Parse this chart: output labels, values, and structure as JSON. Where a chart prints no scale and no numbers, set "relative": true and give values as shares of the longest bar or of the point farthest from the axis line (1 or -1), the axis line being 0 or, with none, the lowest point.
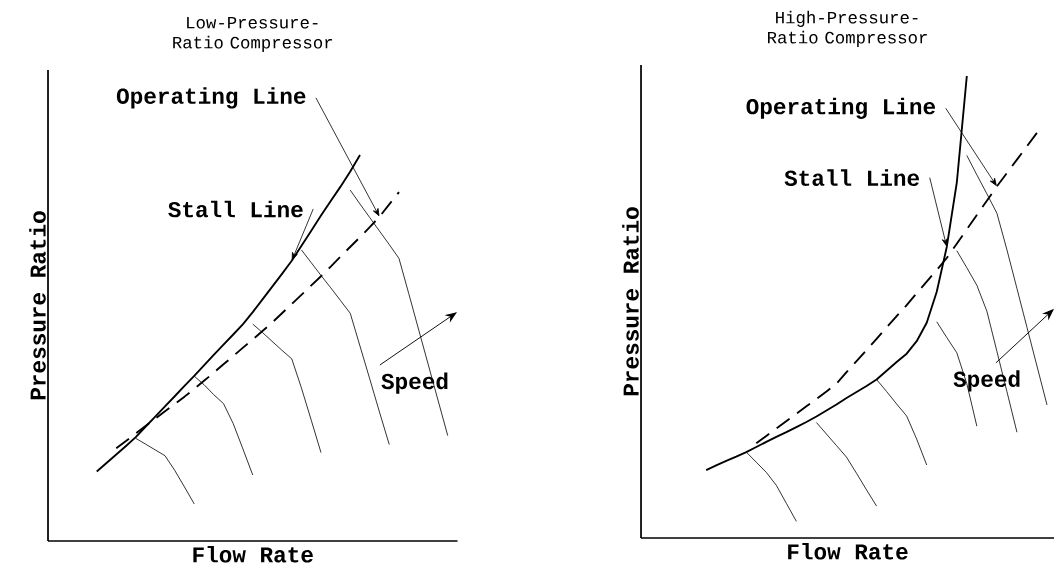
{
  "chart_data": [
    {
      "type": "line",
      "title": "Low-Pressure-Ratio Compressor",
      "xlabel": "Flow Rate",
      "ylabel": "Pressure Ratio",
      "relative": true,
      "annotations": [
        "Speed"
      ],
      "categories": [
        null,
        null,
        null,
        null,
        null,
        null,
        null,
        null,
        null,
        null,
        null,
        null,
        null,
        null,
        null,
        null,
        null,
        null,
        null,
        null,
        null,
        null,
        null,
        null,
        null,
        null,
        null,
        null,
        null,
        null,
        null,
        null,
        null,
        null,
        null,
        null,
        null,
        null,
        null,
        null,
        null,
        null,
        null
      ],
      "series": [
        {
          "name": "Stall Line",
          "color": "#000000",
          "line_style": "solid",
          "values": [
            null,
            null,
            null,
            null,
            null,
            0.18,
            0.202,
            0.224,
            0.246,
            0.269,
            0.296,
            0.322,
            0.349,
            0.375,
            0.402,
            0.428,
            0.455,
            0.482,
            0.509,
            0.535,
            0.562,
            0.593,
            0.626,
            0.659,
            0.692,
            0.726,
            0.765,
            0.804,
            0.843,
            0.881,
            0.918,
            0.957,
            1.0,
            null,
            null,
            null,
            null,
            null,
            null,
            null,
            null,
            null,
            null
          ]
        },
        {
          "name": "Operating Line",
          "color": "#000000",
          "line_style": "dashed",
          "values": [
            null,
            null,
            null,
            null,
            null,
            null,
            null,
            0.24,
            0.259,
            0.279,
            0.298,
            0.317,
            0.336,
            0.355,
            0.374,
            0.394,
            0.415,
            0.436,
            0.458,
            0.479,
            0.501,
            0.522,
            0.544,
            0.566,
            0.59,
            0.614,
            0.638,
            0.662,
            0.686,
            0.711,
            0.737,
            0.762,
            0.787,
            0.813,
            0.84,
            0.872,
            0.904,
            null,
            null,
            null,
            null,
            null,
            null
          ]
        },
        {
          "color": "#000000",
          "line_style": "solid",
          "values": [
            null,
            null,
            null,
            null,
            null,
            null,
            null,
            null,
            null,
            0.266,
            0.251,
            0.236,
            0.221,
            0.183,
            0.14,
            0.096,
            null,
            null,
            null,
            null,
            null,
            null,
            null,
            null,
            null,
            null,
            null,
            null,
            null,
            null,
            null,
            null,
            null,
            null,
            null,
            null,
            null,
            null,
            null,
            null,
            null,
            null,
            null
          ]
        },
        {
          "color": "#000000",
          "line_style": "solid",
          "values": [
            null,
            null,
            null,
            null,
            null,
            null,
            null,
            null,
            null,
            null,
            null,
            null,
            null,
            null,
            null,
            0.427,
            0.405,
            0.379,
            0.356,
            0.304,
            0.238,
            0.171,
            null,
            null,
            null,
            null,
            null,
            null,
            null,
            null,
            null,
            null,
            null,
            null,
            null,
            null,
            null,
            null,
            null,
            null,
            null,
            null,
            null
          ]
        },
        {
          "color": "#000000",
          "line_style": "solid",
          "values": [
            null,
            null,
            null,
            null,
            null,
            null,
            null,
            null,
            null,
            null,
            null,
            null,
            null,
            null,
            null,
            null,
            null,
            null,
            null,
            null,
            null,
            0.562,
            0.54,
            0.517,
            0.494,
            0.472,
            0.396,
            0.313,
            0.229,
            null,
            null,
            null,
            null,
            null,
            null,
            null,
            null,
            null,
            null,
            null,
            null,
            null,
            null
          ]
        },
        {
          "color": "#000000",
          "line_style": "solid",
          "values": [
            null,
            null,
            null,
            null,
            null,
            null,
            null,
            null,
            null,
            null,
            null,
            null,
            null,
            null,
            null,
            null,
            null,
            null,
            null,
            null,
            null,
            null,
            null,
            null,
            null,
            null,
            0.754,
            0.721,
            0.688,
            0.656,
            0.623,
            0.59,
            0.505,
            0.42,
            0.334,
            0.25,
            null,
            null,
            null,
            null,
            null,
            null,
            null
          ]
        },
        {
          "color": "#000000",
          "line_style": "solid",
          "values": [
            null,
            null,
            null,
            null,
            null,
            null,
            null,
            null,
            null,
            null,
            null,
            null,
            null,
            null,
            null,
            null,
            null,
            null,
            null,
            null,
            null,
            null,
            null,
            null,
            null,
            null,
            null,
            null,
            null,
            null,
            null,
            0.909,
            0.873,
            0.838,
            0.803,
            0.768,
            0.732,
            0.641,
            0.549,
            0.457,
            0.365,
            0.273,
            null
          ]
        }
      ]
    },
    {
      "type": "line",
      "title": "High-Pressure-Ratio Compressor",
      "xlabel": "Flow Rate",
      "ylabel": "Pressure Ratio",
      "relative": true,
      "annotations": [
        "Speed"
      ],
      "categories": [
        null,
        null,
        null,
        null,
        null,
        null,
        null,
        null,
        null,
        null,
        null,
        null,
        null,
        null,
        null,
        null,
        null,
        null,
        null,
        null,
        null,
        null,
        null,
        null,
        null,
        null,
        null,
        null,
        null,
        null,
        null,
        null,
        null,
        null,
        null,
        null,
        null,
        null,
        null,
        null,
        null
      ],
      "series": [
        {
          "name": "Stall Line",
          "color": "#000000",
          "line_style": "solid",
          "values": [
            null,
            null,
            null,
            null,
            null,
            null,
            0.147,
            0.157,
            0.167,
            0.176,
            0.186,
            0.197,
            0.208,
            0.219,
            0.229,
            0.24,
            0.251,
            0.263,
            0.276,
            0.289,
            0.303,
            0.316,
            0.329,
            0.343,
            0.362,
            0.381,
            0.399,
            0.426,
            0.466,
            0.533,
            0.63,
            0.769,
            1.0,
            null,
            null,
            null,
            null,
            null,
            null,
            null,
            null
          ]
        },
        {
          "name": "Operating Line",
          "color": "#000000",
          "line_style": "dashed",
          "values": [
            null,
            null,
            null,
            null,
            null,
            null,
            null,
            null,
            null,
            null,
            null,
            0.205,
            0.221,
            0.237,
            0.253,
            0.269,
            0.285,
            0.301,
            0.317,
            0.334,
            0.359,
            0.383,
            0.407,
            0.431,
            0.456,
            0.48,
            0.504,
            0.53,
            0.555,
            0.58,
            0.606,
            0.637,
            0.668,
            0.699,
            0.73,
            0.761,
            0.79,
            0.819,
            0.848,
            0.877,
            null
          ]
        },
        {
          "color": "#000000",
          "line_style": "solid",
          "values": [
            null,
            null,
            null,
            null,
            null,
            null,
            null,
            null,
            null,
            null,
            0.186,
            0.164,
            0.142,
            0.114,
            0.075,
            0.036,
            null,
            null,
            null,
            null,
            null,
            null,
            null,
            null,
            null,
            null,
            null,
            null,
            null,
            null,
            null,
            null,
            null,
            null,
            null,
            null,
            null,
            null,
            null,
            null,
            null
          ]
        },
        {
          "color": "#000000",
          "line_style": "solid",
          "values": [
            null,
            null,
            null,
            null,
            null,
            null,
            null,
            null,
            null,
            null,
            null,
            null,
            null,
            null,
            null,
            null,
            null,
            0.25,
            0.225,
            0.2,
            0.175,
            0.14,
            0.104,
            0.069,
            null,
            null,
            null,
            null,
            null,
            null,
            null,
            null,
            null,
            null,
            null,
            null,
            null,
            null,
            null,
            null,
            null
          ]
        },
        {
          "color": "#000000",
          "line_style": "solid",
          "values": [
            null,
            null,
            null,
            null,
            null,
            null,
            null,
            null,
            null,
            null,
            null,
            null,
            null,
            null,
            null,
            null,
            null,
            null,
            null,
            null,
            null,
            null,
            null,
            0.343,
            0.317,
            0.29,
            0.264,
            0.214,
            0.158,
            null,
            null,
            null,
            null,
            null,
            null,
            null,
            null,
            null,
            null,
            null,
            null
          ]
        },
        {
          "color": "#000000",
          "line_style": "solid",
          "values": [
            null,
            null,
            null,
            null,
            null,
            null,
            null,
            null,
            null,
            null,
            null,
            null,
            null,
            null,
            null,
            null,
            null,
            null,
            null,
            null,
            null,
            null,
            null,
            null,
            null,
            null,
            null,
            null,
            null,
            0.468,
            0.434,
            0.401,
            0.334,
            0.242,
            null,
            null,
            null,
            null,
            null,
            null,
            null
          ]
        },
        {
          "color": "#000000",
          "line_style": "solid",
          "values": [
            null,
            null,
            null,
            null,
            null,
            null,
            null,
            null,
            null,
            null,
            null,
            null,
            null,
            null,
            null,
            null,
            null,
            null,
            null,
            null,
            null,
            null,
            null,
            null,
            null,
            null,
            null,
            null,
            null,
            null,
            null,
            0.622,
            0.585,
            0.547,
            0.491,
            0.404,
            0.317,
            0.229,
            null,
            null,
            null
          ]
        },
        {
          "color": "#000000",
          "line_style": "solid",
          "values": [
            null,
            null,
            null,
            null,
            null,
            null,
            null,
            null,
            null,
            null,
            null,
            null,
            null,
            null,
            null,
            null,
            null,
            null,
            null,
            null,
            null,
            null,
            null,
            null,
            null,
            null,
            null,
            null,
            null,
            null,
            null,
            null,
            0.828,
            0.786,
            0.745,
            0.703,
            0.624,
            0.54,
            0.456,
            0.372,
            0.288
          ]
        }
      ]
    }
  ]
}
